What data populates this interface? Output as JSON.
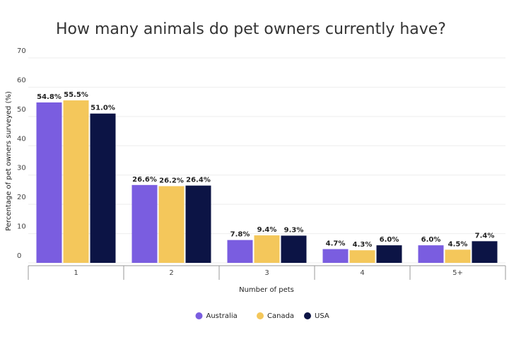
{
  "chart_data": {
    "type": "bar",
    "title": "How many animals do pet owners currently have?",
    "x_label": "Number of pets",
    "y_label": "Percentage of pet owners surveyed (%)",
    "categories": [
      "1",
      "2",
      "3",
      "4",
      "5+"
    ],
    "series": [
      {
        "name": "Australia",
        "color": "#7a5de0",
        "values": [
          54.8,
          26.6,
          7.8,
          4.7,
          6.0
        ],
        "value_labels": [
          "54.8%",
          "26.6%",
          "7.8%",
          "4.7%",
          "6.0%"
        ]
      },
      {
        "name": "Canada",
        "color": "#f4c75b",
        "values": [
          55.5,
          26.2,
          9.4,
          4.3,
          4.5
        ],
        "value_labels": [
          "55.5%",
          "26.2%",
          "9.4%",
          "4.3%",
          "4.5%"
        ]
      },
      {
        "name": "USA",
        "color": "#0c1445",
        "values": [
          51.0,
          26.4,
          9.3,
          6.0,
          7.4
        ],
        "value_labels": [
          "51.0%",
          "26.4%",
          "9.3%",
          "6.0%",
          "7.4%"
        ]
      }
    ],
    "ylim": [
      0,
      70
    ],
    "yticks": [
      0,
      10,
      20,
      30,
      40,
      50,
      60,
      70
    ],
    "grid": true,
    "legend": "bottom"
  }
}
